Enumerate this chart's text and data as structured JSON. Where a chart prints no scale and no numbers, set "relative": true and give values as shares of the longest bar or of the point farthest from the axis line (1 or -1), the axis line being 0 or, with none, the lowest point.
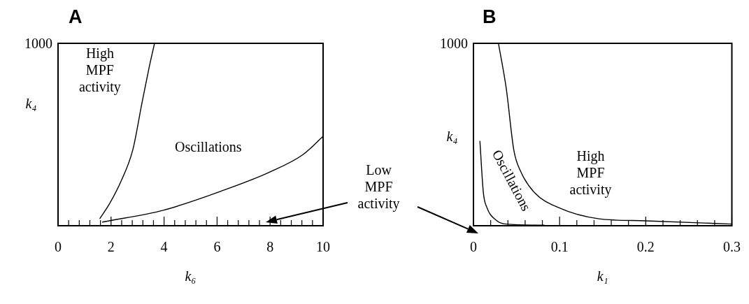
{
  "chart_data": [
    {
      "type": "line",
      "title": "A",
      "xlabel": "k₆",
      "ylabel": "k₄",
      "relative": true,
      "xlim": [
        0,
        10
      ],
      "xticks": [
        0,
        {
          "value": 0.4,
          "label": null
        },
        {
          "value": 0.8,
          "label": null
        },
        {
          "value": 1.2,
          "label": null
        },
        {
          "value": 1.6,
          "label": null
        },
        2,
        {
          "value": 2.4,
          "label": null
        },
        {
          "value": 2.8,
          "label": null
        },
        {
          "value": 3.2,
          "label": null
        },
        {
          "value": 3.6,
          "label": null
        },
        4,
        {
          "value": 4.4,
          "label": null
        },
        {
          "value": 4.8,
          "label": null
        },
        {
          "value": 5.2,
          "label": null
        },
        {
          "value": 5.6,
          "label": null
        },
        6,
        {
          "value": 6.4,
          "label": null
        },
        {
          "value": 6.8,
          "label": null
        },
        {
          "value": 7.2,
          "label": null
        },
        {
          "value": 7.6,
          "label": null
        },
        8,
        {
          "value": 8.4,
          "label": null
        },
        {
          "value": 8.8,
          "label": null
        },
        {
          "value": 9.2,
          "label": null
        },
        {
          "value": 9.6,
          "label": null
        },
        10
      ],
      "series": [
        {
          "color": "#000000",
          "x": [
            1.58,
            1.94,
            2.38,
            2.82,
            3.17,
            3.44,
            3.64
          ],
          "values": [
            0.04,
            0.12,
            0.245,
            0.416,
            0.676,
            0.87,
            1
          ]
        },
        {
          "color": "#000000",
          "x": [
            1.68,
            3.97,
            6.16,
            7.92,
            9.24,
            10
          ],
          "values": [
            0.02,
            0.085,
            0.19,
            0.29,
            0.39,
            0.49
          ]
        }
      ],
      "annotations": [
        "1000",
        "High MPF activity",
        "Oscillations",
        "Low MPF activity"
      ]
    },
    {
      "type": "line",
      "title": "B",
      "xlabel": "k₁",
      "ylabel": "k₄",
      "relative": true,
      "xlim": [
        0,
        0.3
      ],
      "xticks": [
        0,
        {
          "value": 0.02,
          "label": null
        },
        {
          "value": 0.04,
          "label": null
        },
        {
          "value": 0.06,
          "label": null
        },
        {
          "value": 0.08,
          "label": null
        },
        0.1,
        {
          "value": 0.12,
          "label": null
        },
        {
          "value": 0.14,
          "label": null
        },
        {
          "value": 0.16,
          "label": null
        },
        {
          "value": 0.18,
          "label": null
        },
        0.2,
        {
          "value": 0.22,
          "label": null
        },
        {
          "value": 0.24,
          "label": null
        },
        {
          "value": 0.26,
          "label": null
        },
        {
          "value": 0.28,
          "label": null
        },
        0.3
      ],
      "series": [
        {
          "color": "#000000",
          "x": [
            0.029,
            0.038,
            0.047,
            0.055,
            0.071,
            0.098,
            0.146,
            0.2,
            0.3
          ],
          "values": [
            1,
            0.755,
            0.411,
            0.296,
            0.181,
            0.101,
            0.038,
            0.027,
            0.009
          ]
        },
        {
          "color": "#000000",
          "x": [
            0.0075,
            0.0115,
            0.0155,
            0.026,
            0.038,
            0.082
          ],
          "values": [
            0.463,
            0.181,
            0.101,
            0.032,
            0.009,
            0.003
          ]
        }
      ],
      "annotations": [
        "1000",
        "Oscillations",
        "High MPF activity"
      ]
    }
  ]
}
